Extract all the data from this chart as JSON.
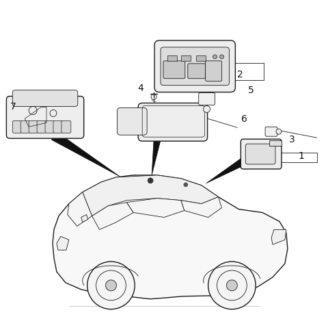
{
  "bg_color": "#ffffff",
  "line_color": "#1a1a1a",
  "fig_width": 4.8,
  "fig_height": 4.66,
  "dpi": 100,
  "label_fontsize": 10,
  "label_color": "#111111"
}
